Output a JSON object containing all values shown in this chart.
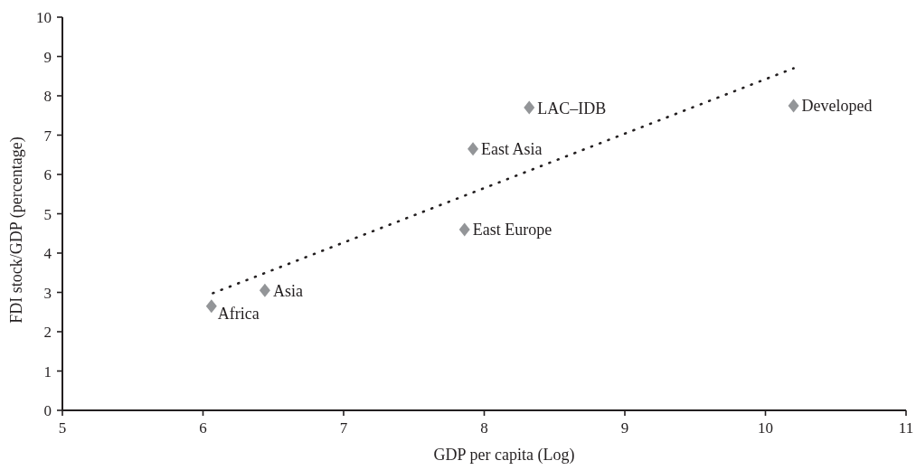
{
  "chart_data": {
    "type": "scatter",
    "xlabel": "GDP per capita (Log)",
    "ylabel": "FDI stock/GDP (percentage)",
    "xlim": [
      5,
      11
    ],
    "xticks": [
      5,
      6,
      7,
      8,
      9,
      10,
      11
    ],
    "ylim": [
      0,
      10
    ],
    "yticks": [
      0,
      1,
      2,
      3,
      4,
      5,
      6,
      7,
      8,
      9,
      10
    ],
    "marker": "diamond",
    "series": [
      {
        "name": "Africa",
        "color": "#939598",
        "x": [
          6.06
        ],
        "values": [
          2.65
        ]
      },
      {
        "name": "Asia",
        "color": "#939598",
        "x": [
          6.44
        ],
        "values": [
          3.05
        ]
      },
      {
        "name": "East Europe",
        "color": "#939598",
        "x": [
          7.86
        ],
        "values": [
          4.6
        ]
      },
      {
        "name": "East Asia",
        "color": "#939598",
        "x": [
          7.92
        ],
        "values": [
          6.65
        ]
      },
      {
        "name": "LAC–IDB",
        "color": "#939598",
        "x": [
          8.32
        ],
        "values": [
          7.7
        ]
      },
      {
        "name": "Developed",
        "color": "#939598",
        "x": [
          10.2
        ],
        "values": [
          7.75
        ]
      },
      {
        "type": "line",
        "color": "#231f20",
        "line_style": "dotted",
        "marker": "none",
        "x": [
          6.07,
          10.2
        ],
        "values": [
          2.98,
          8.7
        ]
      }
    ]
  }
}
